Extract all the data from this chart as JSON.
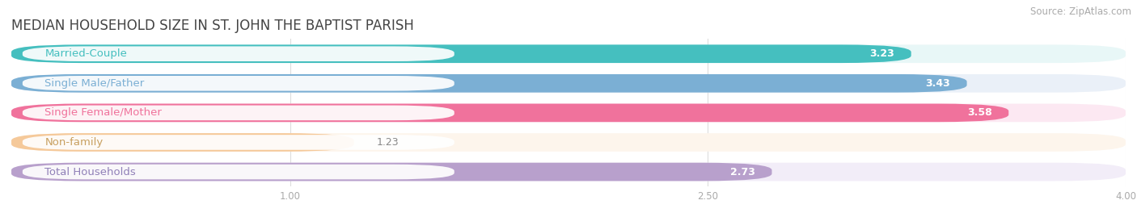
{
  "title": "MEDIAN HOUSEHOLD SIZE IN ST. JOHN THE BAPTIST PARISH",
  "source": "Source: ZipAtlas.com",
  "categories": [
    "Married-Couple",
    "Single Male/Father",
    "Single Female/Mother",
    "Non-family",
    "Total Households"
  ],
  "values": [
    3.23,
    3.43,
    3.58,
    1.23,
    2.73
  ],
  "bar_colors": [
    "#45BFBF",
    "#7BAFD4",
    "#F0729C",
    "#F5C99A",
    "#B8A0CC"
  ],
  "bar_bg_colors": [
    "#E8F7F7",
    "#EAF0F8",
    "#FCE8F2",
    "#FDF5EC",
    "#F2EDF8"
  ],
  "label_text_colors": [
    "#45BFBF",
    "#7BAFD4",
    "#F0729C",
    "#C8A060",
    "#9080B8"
  ],
  "xlim": [
    0,
    4.0
  ],
  "xticks": [
    1.0,
    2.5,
    4.0
  ],
  "label_fontsize": 9.5,
  "value_fontsize": 9,
  "title_fontsize": 12,
  "source_fontsize": 8.5,
  "background_color": "#ffffff"
}
